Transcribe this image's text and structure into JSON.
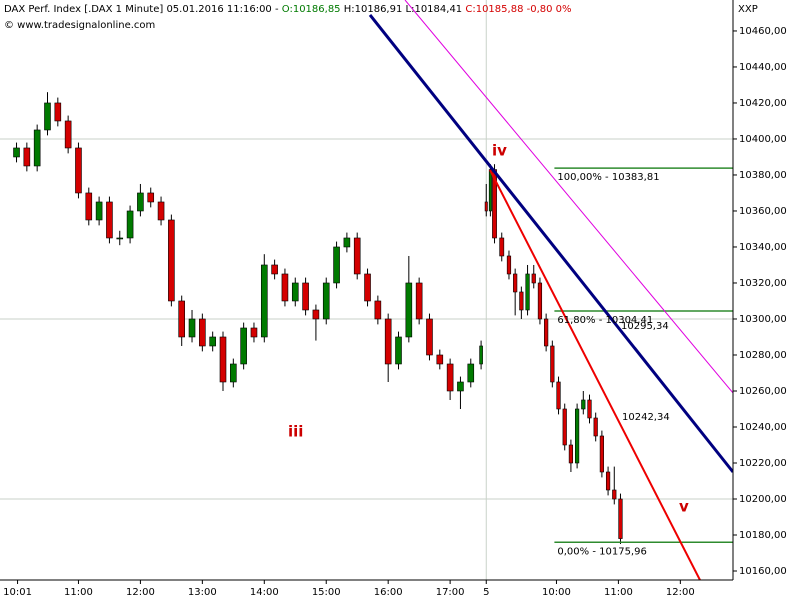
{
  "chart_data": {
    "type": "candlestick",
    "header": {
      "instrument": "DAX Perf. Index [.DAX  1 Minute] 05.01.2016 11:16:00 -",
      "open": "O:10186,85",
      "high_low": "H:10186,91 L:10184,41",
      "close": "C:10185,88",
      "change": "-0,80 0%",
      "source": "© www.tradesignalonline.com",
      "currency": "XXP"
    },
    "up_color": "#007a00",
    "down_color": "#d40000",
    "x": [
      0,
      10,
      20,
      30,
      40,
      50,
      60,
      70,
      80,
      90,
      100,
      110,
      120,
      130,
      140,
      150,
      160,
      170,
      180,
      190,
      200,
      210,
      220,
      230,
      240,
      250,
      260,
      270,
      280,
      290,
      300,
      310,
      320,
      330,
      340,
      350,
      360,
      370,
      380,
      390,
      400,
      410,
      420,
      430,
      440,
      450,
      455,
      459,
      463,
      470,
      477,
      483,
      489,
      495,
      501,
      507,
      513,
      519,
      525,
      531,
      537,
      543,
      549,
      555,
      561,
      567,
      573,
      579,
      585
    ],
    "open": [
      10390,
      10395,
      10385,
      10405,
      10420,
      10410,
      10395,
      10370,
      10355,
      10365,
      10345,
      10345,
      10360,
      10370,
      10365,
      10355,
      10310,
      10290,
      10300,
      10285,
      10290,
      10265,
      10275,
      10295,
      10290,
      10330,
      10325,
      10310,
      10320,
      10305,
      10300,
      10320,
      10340,
      10345,
      10325,
      10310,
      10300,
      10275,
      10290,
      10320,
      10300,
      10280,
      10275,
      10260,
      10265,
      10275,
      10365,
      10360,
      10383,
      10345,
      10335,
      10325,
      10315,
      10305,
      10325,
      10320,
      10300,
      10285,
      10265,
      10250,
      10230,
      10220,
      10250,
      10255,
      10245,
      10235,
      10215,
      10205,
      10200
    ],
    "high": [
      10398,
      10398,
      10408,
      10426,
      10423,
      10413,
      10398,
      10373,
      10368,
      10368,
      10349,
      10363,
      10375,
      10373,
      10368,
      10358,
      10313,
      10305,
      10303,
      10293,
      10293,
      10278,
      10298,
      10298,
      10336,
      10333,
      10328,
      10323,
      10323,
      10308,
      10323,
      10343,
      10348,
      10348,
      10328,
      10313,
      10303,
      10293,
      10335,
      10323,
      10303,
      10283,
      10278,
      10268,
      10278,
      10288,
      10375,
      10386,
      10386,
      10348,
      10338,
      10328,
      10318,
      10330,
      10330,
      10323,
      10303,
      10288,
      10268,
      10253,
      10233,
      10253,
      10260,
      10258,
      10248,
      10238,
      10218,
      10218,
      10203
    ],
    "low": [
      10387,
      10382,
      10382,
      10402,
      10407,
      10392,
      10367,
      10352,
      10352,
      10342,
      10341,
      10342,
      10357,
      10362,
      10352,
      10307,
      10285,
      10287,
      10282,
      10282,
      10260,
      10262,
      10272,
      10287,
      10287,
      10322,
      10307,
      10307,
      10302,
      10288,
      10297,
      10317,
      10337,
      10322,
      10307,
      10297,
      10265,
      10272,
      10287,
      10297,
      10277,
      10272,
      10255,
      10250,
      10262,
      10272,
      10357,
      10357,
      10342,
      10332,
      10322,
      10302,
      10300,
      10302,
      10317,
      10297,
      10282,
      10262,
      10247,
      10227,
      10215,
      10217,
      10247,
      10242,
      10232,
      10212,
      10202,
      10197,
      10175
    ],
    "close": [
      10395,
      10385,
      10405,
      10420,
      10410,
      10395,
      10370,
      10355,
      10365,
      10345,
      10345,
      10360,
      10370,
      10365,
      10355,
      10310,
      10290,
      10300,
      10285,
      10290,
      10265,
      10275,
      10295,
      10290,
      10330,
      10325,
      10310,
      10320,
      10305,
      10300,
      10320,
      10340,
      10345,
      10325,
      10310,
      10300,
      10275,
      10290,
      10320,
      10300,
      10280,
      10275,
      10260,
      10265,
      10275,
      10285,
      10360,
      10383,
      10345,
      10335,
      10325,
      10315,
      10305,
      10325,
      10320,
      10300,
      10285,
      10265,
      10250,
      10230,
      10220,
      10250,
      10255,
      10245,
      10235,
      10215,
      10205,
      10200,
      10178
    ],
    "xlim": [
      -16,
      694
    ],
    "xticks": [
      {
        "value": 1,
        "label": "10:01"
      },
      {
        "value": 60,
        "label": "11:00"
      },
      {
        "value": 120,
        "label": "12:00"
      },
      {
        "value": 180,
        "label": "13:00"
      },
      {
        "value": 240,
        "label": "14:00"
      },
      {
        "value": 300,
        "label": "15:00"
      },
      {
        "value": 360,
        "label": "16:00"
      },
      {
        "value": 420,
        "label": "17:00"
      },
      {
        "value": 455,
        "label": "5"
      },
      {
        "value": 523,
        "label": "10:00"
      },
      {
        "value": 583,
        "label": "11:00"
      },
      {
        "value": 643,
        "label": "12:00"
      }
    ],
    "session_break": 455,
    "ylim": [
      10155,
      10477.2
    ],
    "yticks": [
      {
        "value": 10160,
        "label": "10160,00"
      },
      {
        "value": 10180,
        "label": "10180,00"
      },
      {
        "value": 10200,
        "label": "10200,00"
      },
      {
        "value": 10220,
        "label": "10220,00"
      },
      {
        "value": 10240,
        "label": "10240,00"
      },
      {
        "value": 10260,
        "label": "10260,00"
      },
      {
        "value": 10280,
        "label": "10280,00"
      },
      {
        "value": 10300,
        "label": "10300,00"
      },
      {
        "value": 10320,
        "label": "10320,00"
      },
      {
        "value": 10340,
        "label": "10340,00"
      },
      {
        "value": 10360,
        "label": "10360,00"
      },
      {
        "value": 10380,
        "label": "10380,00"
      },
      {
        "value": 10400,
        "label": "10400,00"
      },
      {
        "value": 10420,
        "label": "10420,00"
      },
      {
        "value": 10440,
        "label": "10440,00"
      },
      {
        "value": 10460,
        "label": "10460,00"
      }
    ],
    "ygrid": [
      10200,
      10300,
      10400
    ],
    "grid_color": "#c8d2c8",
    "fib_color": "#2e8b2e",
    "fib_xstart": 521,
    "fib_levels": [
      {
        "value": 10383.81,
        "label": "100,00% - 10383,81"
      },
      {
        "value": 10304.41,
        "label": "61,80% - 10304,41"
      },
      {
        "value": 10175.96,
        "label": "0,00% - 10175,96"
      }
    ],
    "trendlines": [
      {
        "color": "#000080",
        "width": 3,
        "x": [
          342.4,
          694
        ],
        "y": [
          10468.9,
          10215
        ],
        "label": "10295,34"
      },
      {
        "color": "#e000e0",
        "width": 1,
        "x": [
          376.3,
          694
        ],
        "y": [
          10477.2,
          10258.9
        ]
      },
      {
        "color": "#ee0000",
        "width": 2,
        "x": [
          458.6,
          662
        ],
        "y": [
          10382.8,
          10155
        ],
        "label": "10242,34"
      }
    ],
    "waves": [
      "iii",
      "iv",
      "v"
    ]
  }
}
